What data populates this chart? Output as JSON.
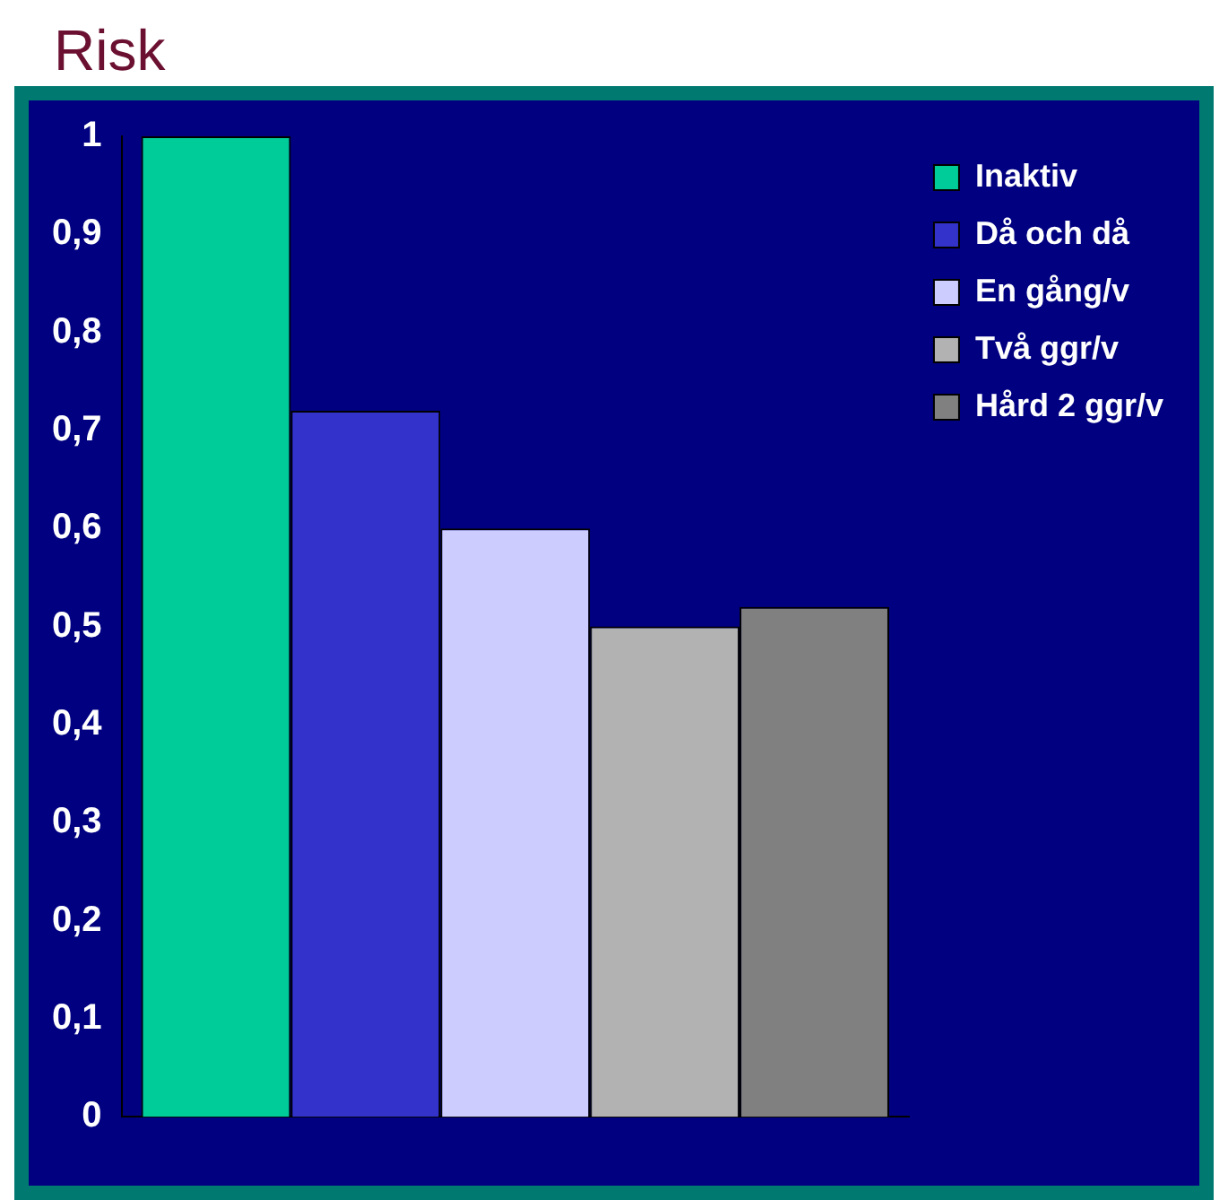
{
  "chart_data": {
    "type": "bar",
    "title": "Risk",
    "categories": [
      null
    ],
    "series": [
      {
        "name": "Inaktiv",
        "color": "#00cc99",
        "values": [
          1
        ]
      },
      {
        "name": "Då och då",
        "color": "#3333cc",
        "values": [
          0.72
        ]
      },
      {
        "name": "En gång/v",
        "color": "#ccccff",
        "values": [
          0.6
        ]
      },
      {
        "name": "Två ggr/v",
        "color": "#b2b2b2",
        "values": [
          0.5
        ]
      },
      {
        "name": "Hård 2 ggr/v",
        "color": "#808080",
        "values": [
          0.52
        ]
      }
    ],
    "ylim": [
      0,
      1
    ],
    "yticks": [
      0,
      {
        "value": 0.1,
        "label": "0,1"
      },
      {
        "value": 0.2,
        "label": "0,2"
      },
      {
        "value": 0.3,
        "label": "0,3"
      },
      {
        "value": 0.4,
        "label": "0,4"
      },
      {
        "value": 0.5,
        "label": "0,5"
      },
      {
        "value": 0.6,
        "label": "0,6"
      },
      {
        "value": 0.7,
        "label": "0,7"
      },
      {
        "value": 0.8,
        "label": "0,8"
      },
      {
        "value": 0.9,
        "label": "0,9"
      },
      1
    ],
    "legend": "top right"
  }
}
